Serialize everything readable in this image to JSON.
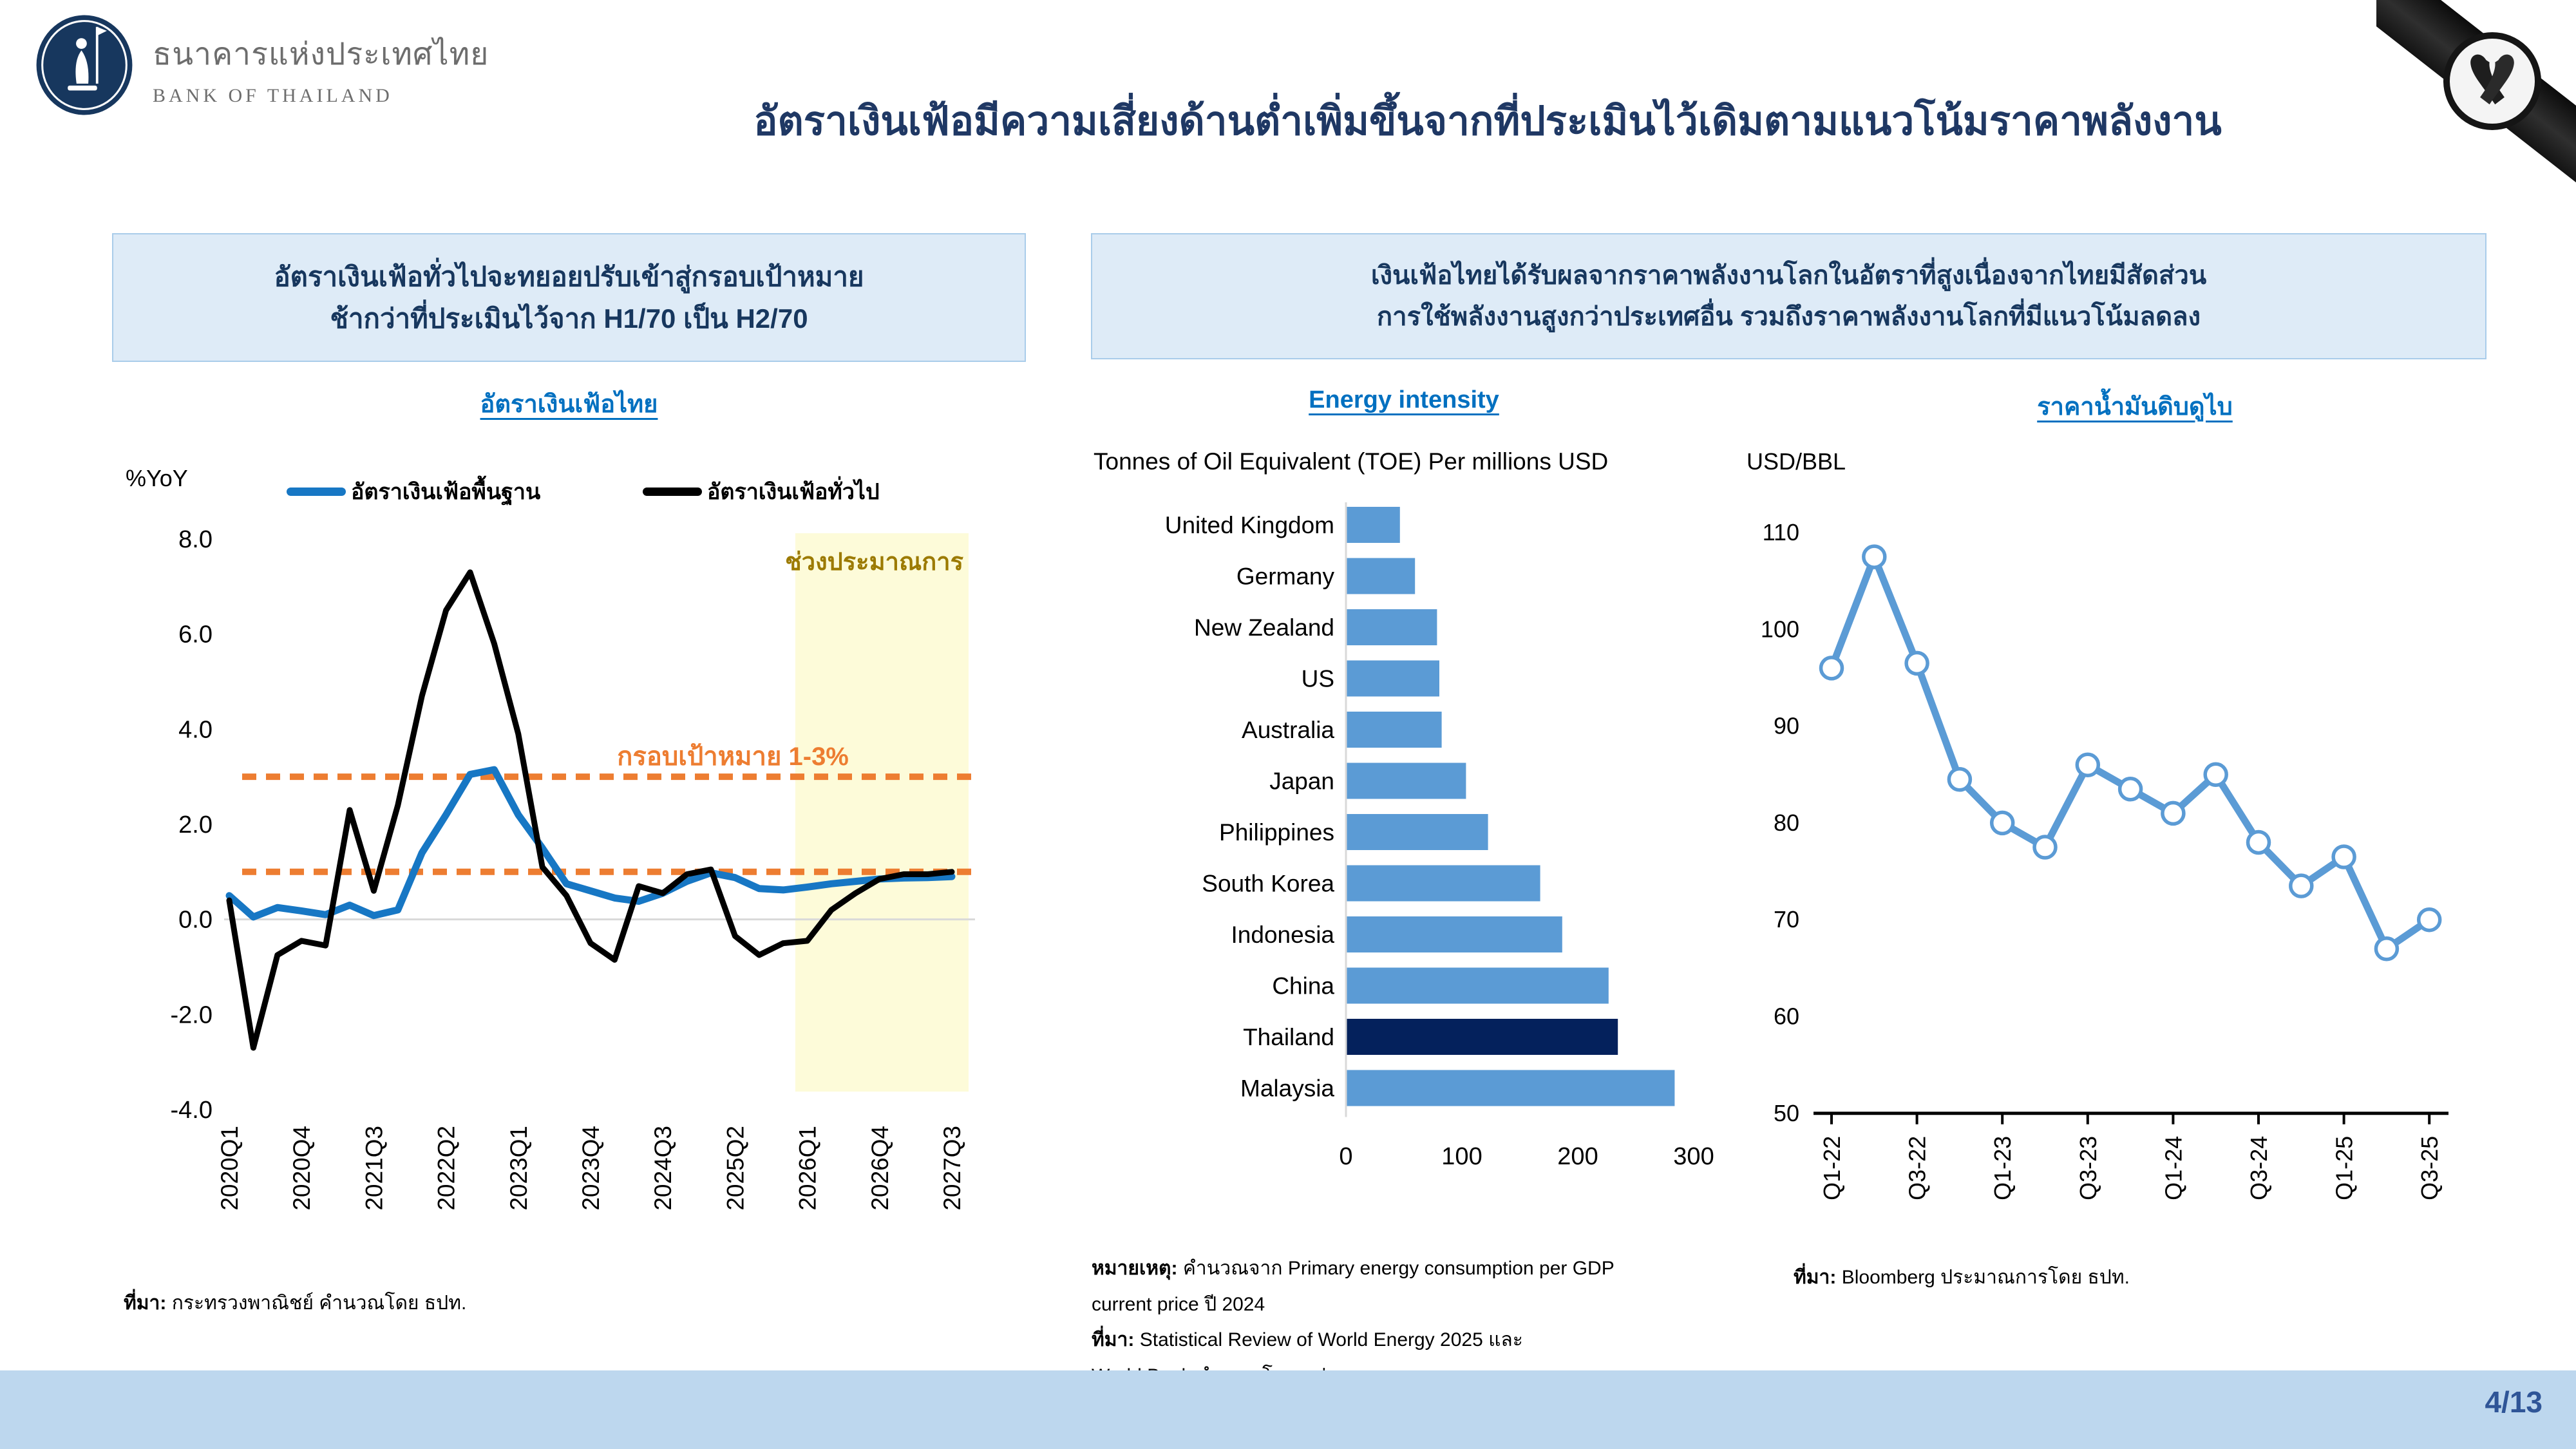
{
  "header": {
    "logo_title_th": "ธนาคารแห่งประเทศไทย",
    "logo_title_en": "BANK OF THAILAND",
    "slide_title": "อัตราเงินเฟ้อมีความเสี่ยงด้านต่ำเพิ่มขึ้นจากที่ประเมินไว้เดิมตามแนวโน้มราคาพลังงาน"
  },
  "callouts": {
    "left_line1": "อัตราเงินเฟ้อทั่วไปจะทยอยปรับเข้าสู่กรอบเป้าหมาย",
    "left_line2": "ช้ากว่าที่ประเมินไว้จาก H1/70 เป็น H2/70",
    "right_line1": "เงินเฟ้อไทยได้รับผลจากราคาพลังงานโลกในอัตราที่สูงเนื่องจากไทยมีสัดส่วน",
    "right_line2": "การใช้พลังงานสูงกว่าประเทศอื่น รวมถึงราคาพลังงานโลกที่มีแนวโน้มลดลง"
  },
  "footer": {
    "page_number": "4/13"
  },
  "colors": {
    "title_navy": "#1F3864",
    "link_blue": "#0070C0",
    "callout_fill": "#DEEBF7",
    "callout_border": "#A9CCEA",
    "footer_bar": "#BDD7EE",
    "page_number": "#2F5597",
    "ribbon_black": "#151515"
  },
  "chart_data": [
    {
      "id": "thai-inflation",
      "type": "line",
      "title": "อัตราเงินเฟ้อไทย",
      "ylabel": "%YoY",
      "ylim": [
        -4.0,
        8.0
      ],
      "yticks": [
        8.0,
        6.0,
        4.0,
        2.0,
        0.0,
        -2.0,
        -4.0
      ],
      "categories": [
        "2020Q1",
        "2020Q2",
        "2020Q3",
        "2020Q4",
        "2021Q1",
        "2021Q2",
        "2021Q3",
        "2021Q4",
        "2022Q1",
        "2022Q2",
        "2022Q3",
        "2022Q4",
        "2023Q1",
        "2023Q2",
        "2023Q3",
        "2023Q4",
        "2024Q1",
        "2024Q2",
        "2024Q3",
        "2024Q4",
        "2025Q1",
        "2025Q2",
        "2025Q3",
        "2025Q4",
        "2026Q1",
        "2026Q2",
        "2026Q3",
        "2026Q4",
        "2027Q1",
        "2027Q2",
        "2027Q3"
      ],
      "xtick_labels": [
        "2020Q1",
        "2020Q4",
        "2021Q3",
        "2022Q2",
        "2023Q1",
        "2023Q4",
        "2024Q3",
        "2025Q2",
        "2026Q1",
        "2026Q4",
        "2027Q3"
      ],
      "series": [
        {
          "name": "อัตราเงินเฟ้อพื้นฐาน",
          "color": "#1777C4",
          "values": [
            0.5,
            0.05,
            0.25,
            0.18,
            0.1,
            0.3,
            0.08,
            0.2,
            1.4,
            2.2,
            3.05,
            3.15,
            2.2,
            1.5,
            0.75,
            0.6,
            0.45,
            0.38,
            0.55,
            0.8,
            0.98,
            0.88,
            0.65,
            0.62,
            0.68,
            0.75,
            0.8,
            0.85,
            0.87,
            0.88,
            0.9
          ]
        },
        {
          "name": "อัตราเงินเฟ้อทั่วไป",
          "color": "#000000",
          "values": [
            0.4,
            -2.7,
            -0.75,
            -0.45,
            -0.55,
            2.3,
            0.6,
            2.4,
            4.7,
            6.5,
            7.3,
            5.8,
            3.9,
            1.1,
            0.5,
            -0.5,
            -0.85,
            0.7,
            0.55,
            0.95,
            1.05,
            -0.35,
            -0.75,
            -0.5,
            -0.45,
            0.2,
            0.55,
            0.85,
            0.95,
            0.95,
            1.0
          ]
        }
      ],
      "target_band": {
        "label": "กรอบเป้าหมาย 1-3%",
        "lower": 1.0,
        "upper": 3.0,
        "color": "#ED7D31"
      },
      "forecast_band": {
        "label": "ช่วงประมาณการ",
        "from_index": 23.5,
        "fill": "#FDFBD9",
        "label_color": "#9C7A00"
      },
      "grid": "zero-line-only",
      "legend_position": "top",
      "source_label": "ที่มา:",
      "source_text": " กระทรวงพาณิชย์ คำนวณโดย ธปท."
    },
    {
      "id": "energy-intensity",
      "type": "bar",
      "orientation": "horizontal",
      "title": "Energy intensity",
      "subtitle": "Tonnes of Oil Equivalent (TOE) Per millions USD",
      "categories": [
        "United Kingdom",
        "Germany",
        "New Zealand",
        "US",
        "Australia",
        "Japan",
        "Philippines",
        "South Korea",
        "Indonesia",
        "China",
        "Thailand",
        "Malaysia"
      ],
      "values": [
        46,
        59,
        78,
        80,
        82,
        103,
        122,
        167,
        186,
        226,
        234,
        283
      ],
      "xticks": [
        0,
        100,
        200,
        300
      ],
      "xlim": [
        0,
        300
      ],
      "bar_color": "#5B9BD5",
      "highlight_category": "Thailand",
      "highlight_color": "#04215C",
      "grid": "off",
      "note_label": "หมายเหตุ:",
      "note_text": " คำนวณจาก Primary energy consumption per GDP",
      "note_line2": "current price ปี 2024",
      "source_label": "ที่มา:",
      "source_text": " Statistical Review of World Energy 2025 และ",
      "source_line2": "World Bank คำนวณโดย ธปท"
    },
    {
      "id": "dubai-crude-oil",
      "type": "line",
      "title": "ราคาน้ำมันดิบดูไบ",
      "ylabel": "USD/BBL",
      "ylim": [
        50,
        110
      ],
      "yticks": [
        110,
        100,
        90,
        80,
        70,
        60,
        50
      ],
      "categories": [
        "Q1-22",
        "Q2-22",
        "Q3-22",
        "Q4-22",
        "Q1-23",
        "Q2-23",
        "Q3-23",
        "Q4-23",
        "Q1-24",
        "Q2-24",
        "Q3-24",
        "Q4-24",
        "Q1-25",
        "Q2-25",
        "Q3-25"
      ],
      "xtick_labels": [
        "Q1-22",
        "Q3-22",
        "Q1-23",
        "Q3-23",
        "Q1-24",
        "Q3-24",
        "Q1-25",
        "Q3-25"
      ],
      "values": [
        96,
        107.5,
        96.5,
        84.5,
        80,
        77.5,
        86,
        83.5,
        81,
        85,
        78,
        73.5,
        76.5,
        67,
        70
      ],
      "line_color": "#5B9BD5",
      "marker": "circle-open",
      "grid": "off",
      "source_label": "ที่มา:",
      "source_text": " Bloomberg ประมาณการโดย ธปท."
    }
  ]
}
